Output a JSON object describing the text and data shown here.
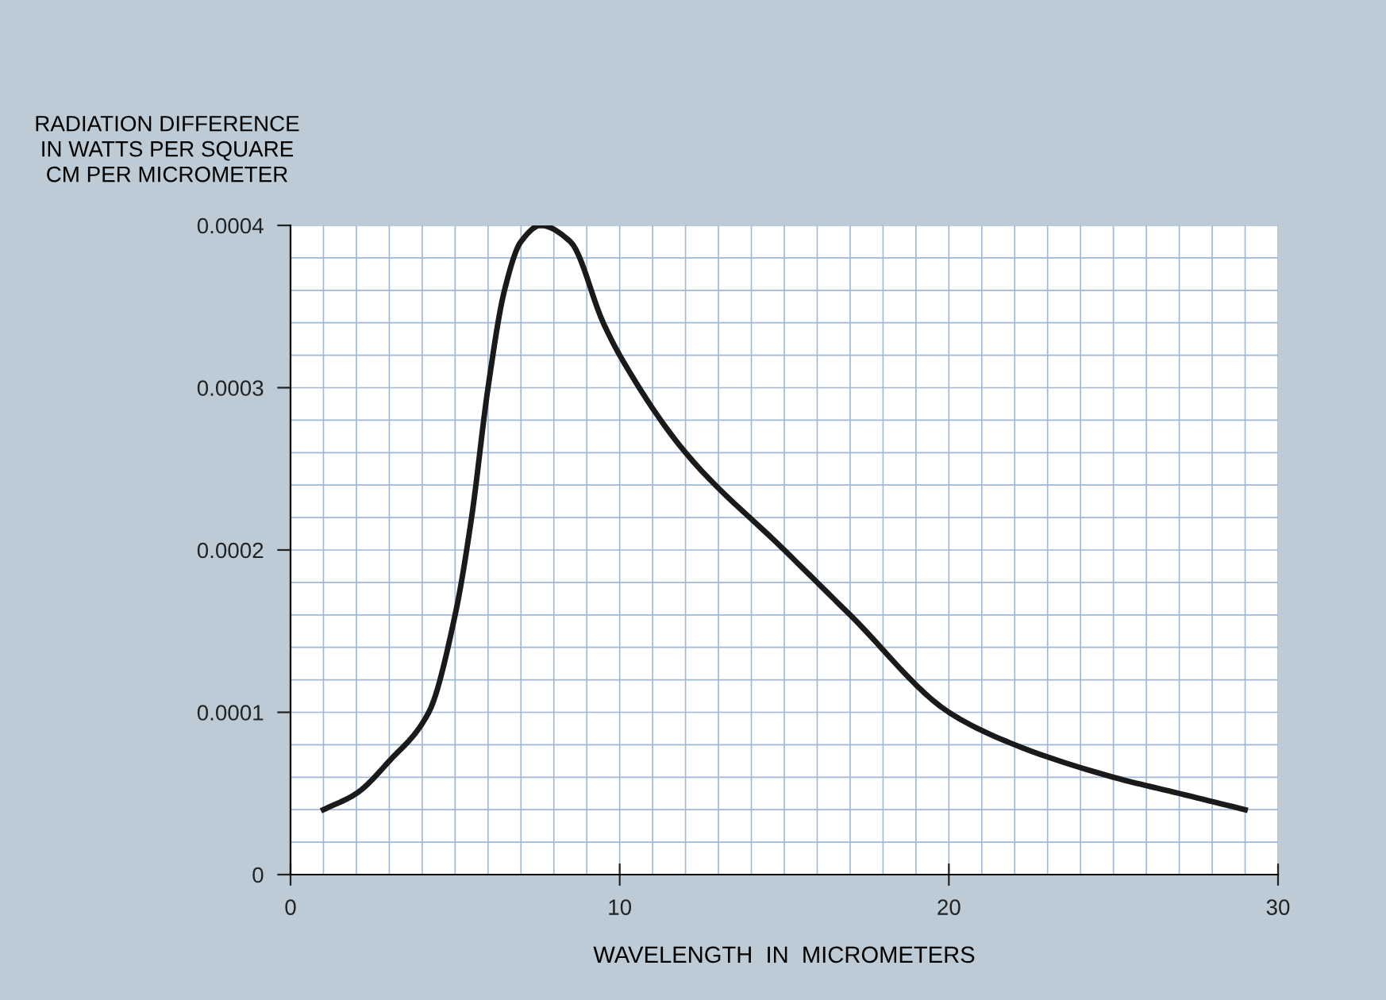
{
  "chart_data": {
    "type": "line",
    "ylabel": "RADIATION DIFFERENCE\nIN WATTS PER SQUARE\nCM PER MICROMETER",
    "xlabel": "WAVELENGTH  IN  MICROMETERS",
    "x": [
      1,
      2,
      3,
      4.2,
      5,
      5.5,
      6,
      6.5,
      7,
      7.6,
      8.5,
      9.5,
      10,
      12,
      15,
      17,
      20,
      22,
      25,
      27,
      29
    ],
    "series": [
      {
        "color": "#1a1a1a",
        "values": [
          4e-05,
          5e-05,
          7e-05,
          0.0001,
          0.00016,
          0.00022,
          0.0003,
          0.00036,
          0.00039,
          0.0004,
          0.00039,
          0.00034,
          0.00032,
          0.00026,
          0.0002,
          0.00016,
          0.0001,
          8e-05,
          6e-05,
          5e-05,
          4e-05
        ]
      }
    ],
    "xlim": [
      0,
      30
    ],
    "xticks": [
      0,
      10,
      20,
      30
    ],
    "ylim": [
      0,
      0.0004
    ],
    "yticks": [
      0,
      {
        "value": 0.0001,
        "label": "0.0001"
      },
      {
        "value": 0.0002,
        "label": "0.0002"
      },
      {
        "value": 0.0003,
        "label": "0.0003"
      },
      {
        "value": 0.0004,
        "label": "0.0004"
      }
    ],
    "grid": true,
    "marker": "none",
    "line_style": "solid"
  }
}
